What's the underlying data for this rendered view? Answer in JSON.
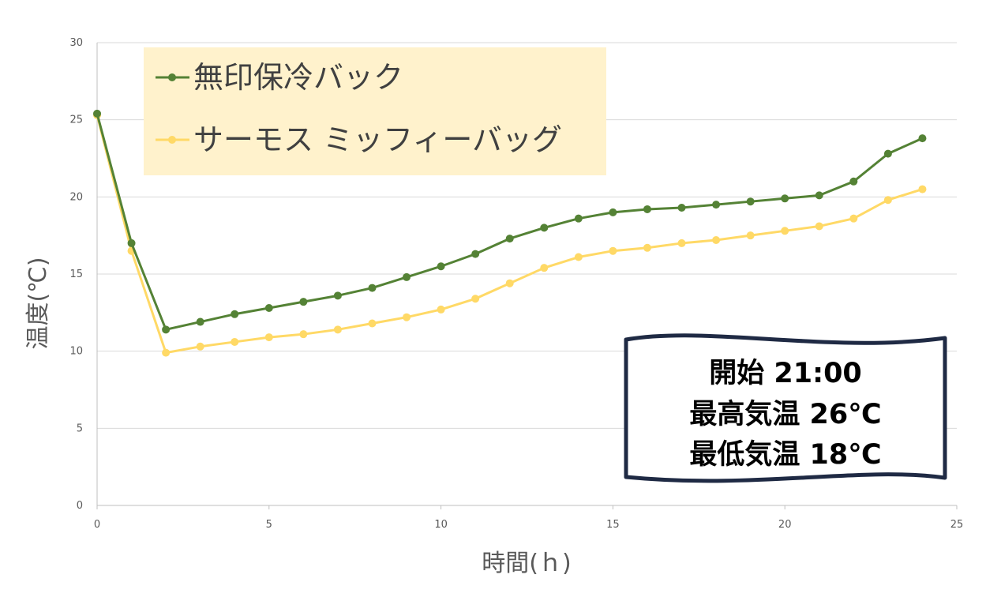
{
  "chart_data": {
    "type": "line",
    "xlabel": "時間(ｈ)",
    "ylabel": "温度(℃)",
    "xlim": [
      0,
      25
    ],
    "ylim": [
      0,
      30
    ],
    "x_ticks": [
      "0",
      "5",
      "10",
      "15",
      "20",
      "25"
    ],
    "y_ticks": [
      "0",
      "5",
      "10",
      "15",
      "20",
      "25",
      "30"
    ],
    "grid": true,
    "legend_position": "top-left",
    "x": [
      0,
      1,
      2,
      3,
      4,
      5,
      6,
      7,
      8,
      9,
      10,
      11,
      12,
      13,
      14,
      15,
      16,
      17,
      18,
      19,
      20,
      21,
      22,
      23,
      24
    ],
    "series": [
      {
        "name": "無印保冷バック",
        "color": "#548235",
        "values": [
          25.4,
          17.0,
          11.4,
          11.9,
          12.4,
          12.8,
          13.2,
          13.6,
          14.1,
          14.8,
          15.5,
          16.3,
          17.3,
          18.0,
          18.6,
          19.0,
          19.2,
          19.3,
          19.5,
          19.7,
          19.9,
          20.1,
          21.0,
          22.8,
          23.8
        ]
      },
      {
        "name": "サーモス ミッフィーバッグ",
        "color": "#FFD966",
        "values": [
          25.3,
          16.5,
          9.9,
          10.3,
          10.6,
          10.9,
          11.1,
          11.4,
          11.8,
          12.2,
          12.7,
          13.4,
          14.4,
          15.4,
          16.1,
          16.5,
          16.7,
          17.0,
          17.2,
          17.5,
          17.8,
          18.1,
          18.6,
          19.8,
          20.5
        ]
      }
    ],
    "annotation": {
      "lines": [
        "開始 21:00",
        "最高気温 26℃",
        "最低気温 18℃"
      ]
    }
  }
}
